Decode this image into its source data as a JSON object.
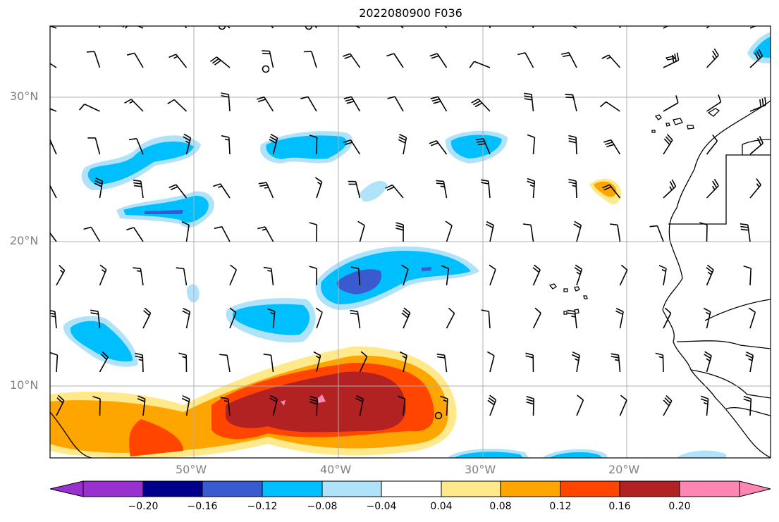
{
  "title": "2022080900 F036",
  "map": {
    "lat_labels": [
      {
        "text": "30°N",
        "lat": 30
      },
      {
        "text": "20°N",
        "lat": 20
      },
      {
        "text": "10°N",
        "lat": 10
      }
    ],
    "lon_labels": [
      {
        "text": "50°W",
        "lon": -50
      },
      {
        "text": "40°W",
        "lon": -40
      },
      {
        "text": "30°W",
        "lon": -30
      },
      {
        "text": "20°W",
        "lon": -20
      }
    ],
    "extent": {
      "lon_min": -60,
      "lon_max": -10,
      "lat_min": 5,
      "lat_max": 35
    },
    "gridline_color": "#b0b0b0"
  },
  "colorbar": {
    "tick_labels": [
      "−0.20",
      "−0.16",
      "−0.12",
      "−0.08",
      "−0.04",
      "0.04",
      "0.08",
      "0.12",
      "0.16",
      "0.20"
    ],
    "colors": [
      "#9b30d0",
      "#00008b",
      "#3a5bd0",
      "#00bfff",
      "#b0e2fa",
      "#ffffff",
      "#ffe98a",
      "#ffa500",
      "#ff4500",
      "#b22222",
      "#ff85b3"
    ]
  }
}
